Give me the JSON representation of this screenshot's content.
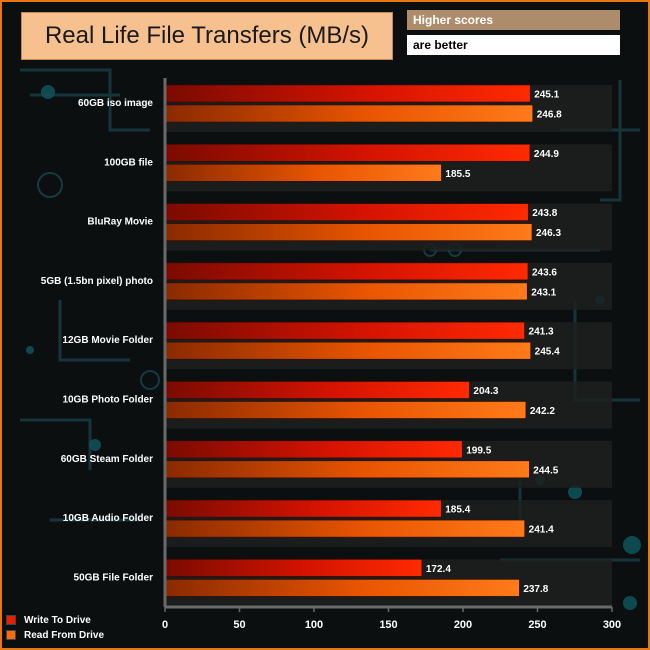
{
  "header": {
    "title": "Real Life File Transfers (MB/s)",
    "note_line1": "Higher scores",
    "note_line2": "are better"
  },
  "colors": {
    "write": "#ee1c00",
    "read": "#fb6a10",
    "frame": "#e6780f",
    "title_bg": "#f7c08f"
  },
  "chart_data": {
    "type": "bar",
    "orientation": "horizontal",
    "categories": [
      "60GB iso image",
      "100GB file",
      "BluRay Movie",
      "5GB (1.5bn pixel) photo",
      "12GB Movie Folder",
      "10GB Photo Folder",
      "60GB Steam Folder",
      "10GB Audio Folder",
      "50GB File Folder"
    ],
    "series": [
      {
        "name": "Write To  Drive",
        "values": [
          245.1,
          244.9,
          243.8,
          243.6,
          241.3,
          204.3,
          199.5,
          185.4,
          172.4
        ]
      },
      {
        "name": "Read From  Drive",
        "values": [
          246.8,
          185.5,
          246.3,
          243.1,
          245.4,
          242.2,
          244.5,
          241.4,
          237.8
        ]
      }
    ],
    "xlim": [
      0,
      300
    ],
    "xticks": [
      0,
      50,
      100,
      150,
      200,
      250,
      300
    ],
    "legend_position": "bottom-left",
    "grid": false
  }
}
